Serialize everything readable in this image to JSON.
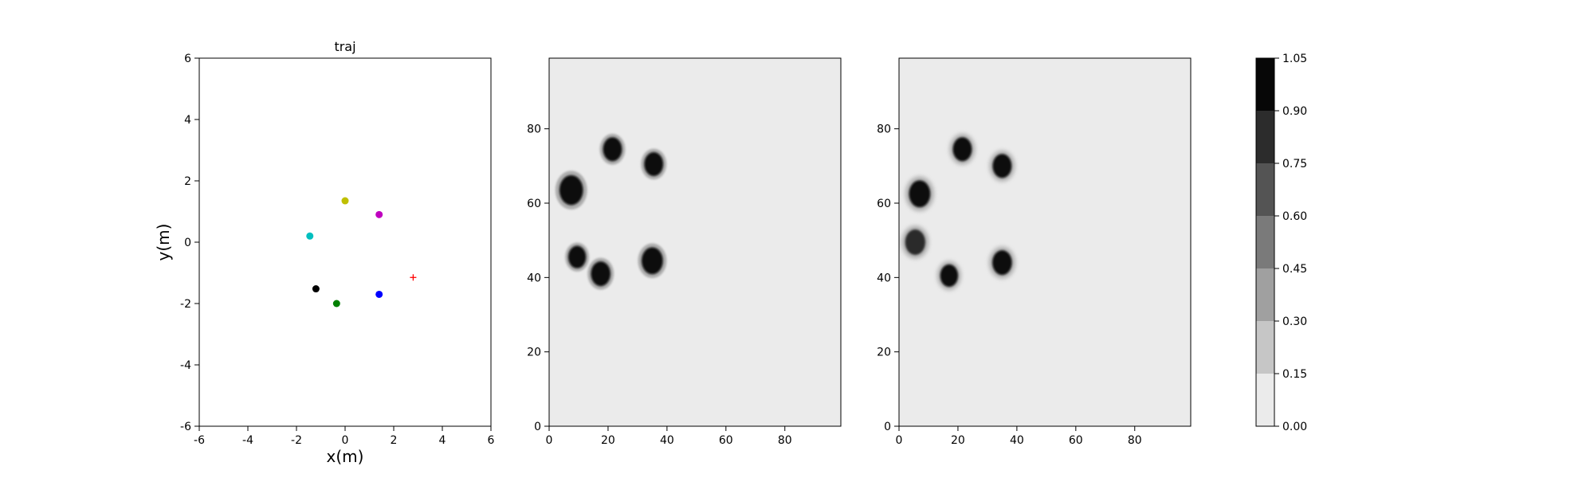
{
  "chart_data": [
    {
      "type": "scatter",
      "title": "traj",
      "xlabel": "x(m)",
      "ylabel": "y(m)",
      "xlim": [
        -6,
        6
      ],
      "ylim": [
        -6,
        6
      ],
      "xticks": [
        -6,
        -4,
        -2,
        0,
        2,
        4,
        6
      ],
      "yticks": [
        -6,
        -4,
        -2,
        0,
        2,
        4,
        6
      ],
      "grid": false,
      "points": [
        {
          "x": 0.0,
          "y": 1.35,
          "color": "#bfbf00",
          "marker": "circle"
        },
        {
          "x": 1.4,
          "y": 0.9,
          "color": "#bf00bf",
          "marker": "circle"
        },
        {
          "x": -1.45,
          "y": 0.2,
          "color": "#00bfbf",
          "marker": "circle"
        },
        {
          "x": -1.2,
          "y": -1.52,
          "color": "#000000",
          "marker": "circle"
        },
        {
          "x": -0.35,
          "y": -2.0,
          "color": "#008000",
          "marker": "circle"
        },
        {
          "x": 1.4,
          "y": -1.7,
          "color": "#0000ff",
          "marker": "circle"
        },
        {
          "x": 2.8,
          "y": -1.15,
          "color": "#ff0000",
          "marker": "plus"
        }
      ]
    },
    {
      "type": "heatmap",
      "title": "",
      "xlim": [
        0,
        99
      ],
      "ylim": [
        0,
        99
      ],
      "xticks": [
        0,
        20,
        40,
        60,
        80
      ],
      "yticks": [
        0,
        20,
        40,
        60,
        80
      ],
      "background_value": 0.05,
      "blobs": [
        {
          "x": 21.5,
          "y": 74.5,
          "r": 3.2,
          "value": 1.0
        },
        {
          "x": 35.5,
          "y": 70.5,
          "r": 3.2,
          "value": 1.0
        },
        {
          "x": 7.5,
          "y": 63.5,
          "r": 4.0,
          "value": 1.0
        },
        {
          "x": 9.5,
          "y": 45.5,
          "r": 3.0,
          "value": 1.0
        },
        {
          "x": 17.5,
          "y": 41.0,
          "r": 3.3,
          "value": 1.0
        },
        {
          "x": 35.0,
          "y": 44.5,
          "r": 3.6,
          "value": 1.0
        }
      ]
    },
    {
      "type": "heatmap",
      "title": "",
      "xlim": [
        0,
        99
      ],
      "ylim": [
        0,
        99
      ],
      "xticks": [
        0,
        20,
        40,
        60,
        80
      ],
      "yticks": [
        0,
        20,
        40,
        60,
        80
      ],
      "background_value": 0.05,
      "blobs": [
        {
          "x": 21.5,
          "y": 74.5,
          "r": 3.2,
          "value": 1.0
        },
        {
          "x": 35.0,
          "y": 70.0,
          "r": 3.2,
          "value": 1.0
        },
        {
          "x": 7.0,
          "y": 62.5,
          "r": 3.6,
          "value": 1.0
        },
        {
          "x": 5.5,
          "y": 49.5,
          "r": 3.4,
          "value": 0.85
        },
        {
          "x": 17.0,
          "y": 40.5,
          "r": 3.0,
          "value": 1.0
        },
        {
          "x": 35.0,
          "y": 44.0,
          "r": 3.3,
          "value": 1.0
        }
      ]
    }
  ],
  "colorbar": {
    "levels": [
      0.0,
      0.15,
      0.3,
      0.45,
      0.6,
      0.75,
      0.9,
      1.05
    ],
    "tick_labels": [
      "0.00",
      "0.15",
      "0.30",
      "0.45",
      "0.60",
      "0.75",
      "0.90",
      "1.05"
    ],
    "colors": [
      "#ebebeb",
      "#c6c6c6",
      "#a0a0a0",
      "#7a7a7a",
      "#545454",
      "#2c2c2c",
      "#070707"
    ]
  }
}
